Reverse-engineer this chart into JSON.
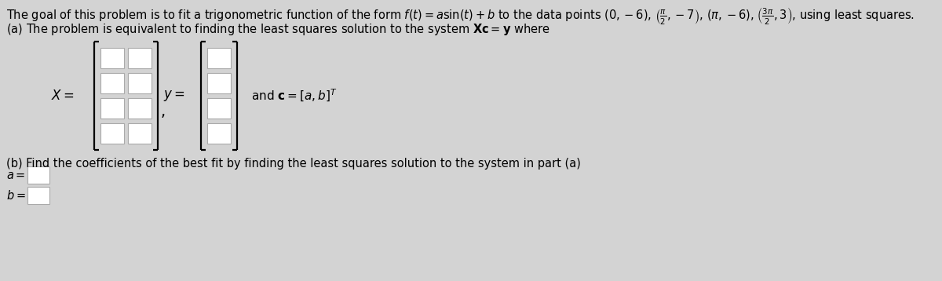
{
  "title_text": "The goal of this problem is to fit a trigonometric function of the form $f(t) = a\\sin(t) + b$ to the data points $(0, -6)$, $\\left(\\frac{\\pi}{2}, -7\\right)$, $(\\pi, -6)$, $\\left(\\frac{3\\pi}{2}, 3\\right)$, using least squares.",
  "part_a_text": "(a) The problem is equivalent to finding the least squares solution to the system $\\mathbf{Xc} = \\mathbf{y}$ where",
  "x_label": "$X =$",
  "y_label": "$y =$",
  "and_c_text": "and $\\mathbf{c} = [a, b]^T$",
  "part_b_text": "(b) Find the coefficients of the best fit by finding the least squares solution to the system in part (a)",
  "a_label": "$a =$",
  "b_label": "$b =$",
  "bg_color": "#d3d3d3",
  "text_color": "#000000",
  "box_fill": "#ffffff",
  "box_edge": "#aaaaaa",
  "title_fontsize": 10.5,
  "label_fontsize": 12,
  "small_fontsize": 10
}
